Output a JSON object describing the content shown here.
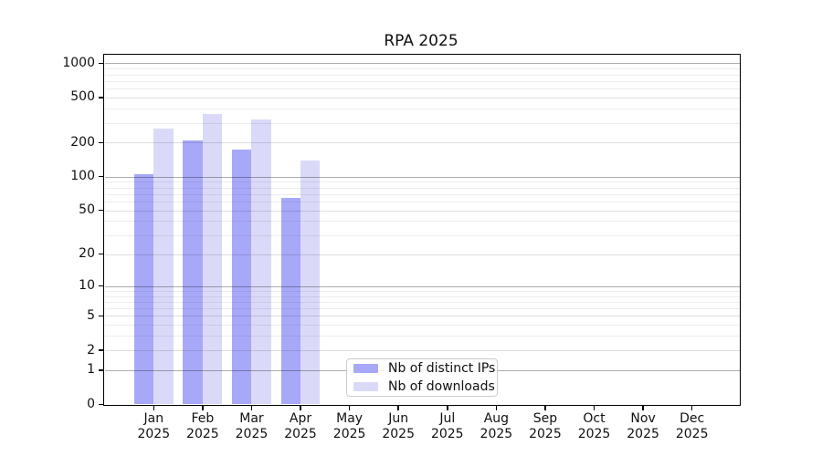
{
  "figure": {
    "background": "#ffffff"
  },
  "chart_data": {
    "type": "bar",
    "title": "RPA 2025",
    "categories": [
      "Jan",
      "Feb",
      "Mar",
      "Apr",
      "May",
      "Jun",
      "Jul",
      "Aug",
      "Sep",
      "Oct",
      "Nov",
      "Dec"
    ],
    "category_year": "2025",
    "series": [
      {
        "name": "Nb of distinct IPs",
        "color": "#a8a8f8",
        "values": [
          105,
          210,
          175,
          64,
          0,
          0,
          0,
          0,
          0,
          0,
          0,
          0
        ]
      },
      {
        "name": "Nb of downloads",
        "color": "#dadaf8",
        "values": [
          265,
          358,
          320,
          140,
          0,
          0,
          0,
          0,
          0,
          0,
          0,
          0
        ]
      }
    ],
    "xlabel": "",
    "ylabel": "",
    "yscale": "log1p",
    "ylim": [
      0,
      1180
    ],
    "y_ticks": [
      0,
      1,
      2,
      5,
      10,
      20,
      50,
      100,
      200,
      500,
      1000
    ],
    "gridlines": {
      "major": [
        1,
        10,
        100,
        1000
      ],
      "labeled_minor": [
        2,
        5,
        20,
        50,
        200,
        500
      ],
      "minor": [
        3,
        4,
        6,
        7,
        8,
        9,
        30,
        40,
        60,
        70,
        80,
        90,
        300,
        400,
        600,
        700,
        800,
        900
      ]
    },
    "grid": "on",
    "legend_position": "lower-center-left"
  }
}
